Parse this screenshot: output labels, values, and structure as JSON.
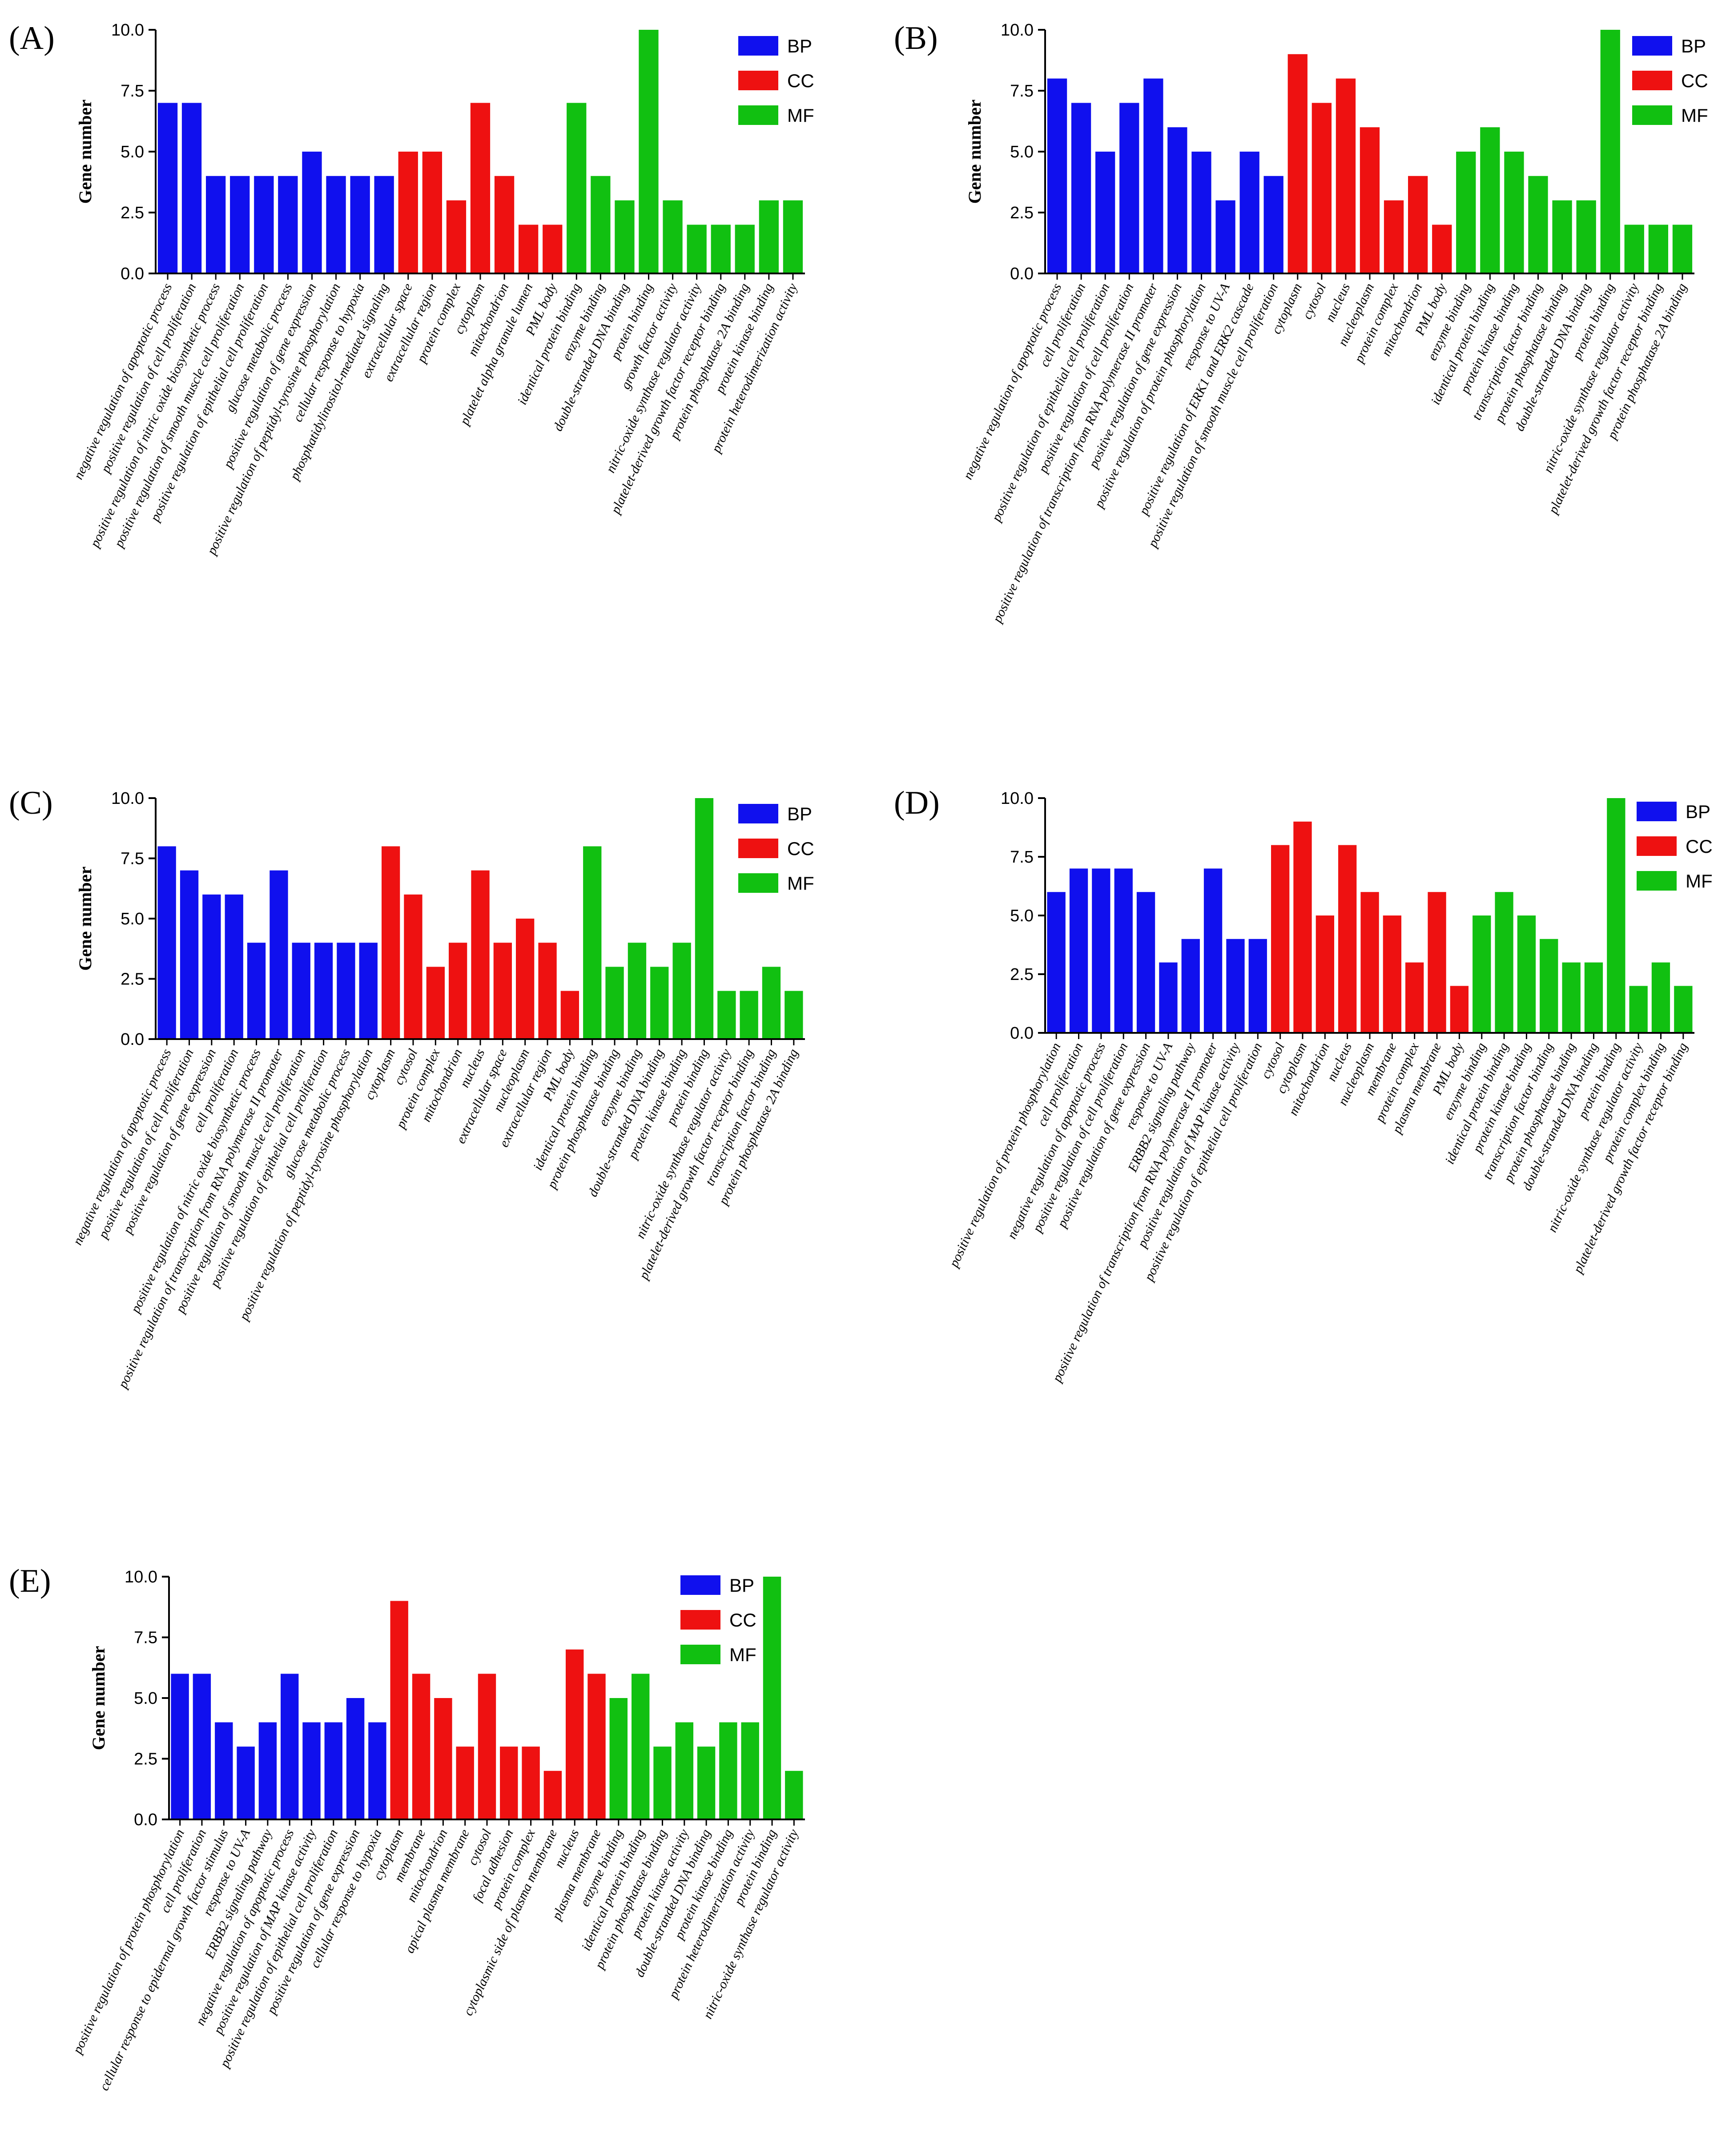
{
  "colors": {
    "BP": "#1010ee",
    "CC": "#ee1111",
    "MF": "#11c011"
  },
  "chart_data": [
    {
      "panel": "(A)",
      "type": "bar",
      "title": "",
      "xlabel": "",
      "ylabel": "Gene number",
      "ylim": [
        0,
        10
      ],
      "yticks": [
        "0.0",
        "2.5",
        "5.0",
        "7.5",
        "10.0"
      ],
      "legend": [
        "BP",
        "CC",
        "MF"
      ],
      "categories": [
        "negative regulation of apoptotic process",
        "positive regulation of cell proliferation",
        "positive regulation of nitric oxide biosynthetic process",
        "positive regulation of smooth muscle cell proliferation",
        "positive regulation of epithelial cell proliferation",
        "glucose metabolic process",
        "positive regulation of gene expression",
        "positive regulation of peptidyl-tyrosine phosphorylation",
        "cellular response to hypoxia",
        "phosphatidylinositol-mediated signaling",
        "extracellular space",
        "extracellular region",
        "protein complex",
        "cytoplasm",
        "mitochondrion",
        "platelet alpha granule lumen",
        "PML body",
        "identical protein binding",
        "enzyme binding",
        "double-stranded DNA binding",
        "protein binding",
        "growth factor activity",
        "nitric-oxide synthase regulator activity",
        "platelet-derived growth factor receptor binding",
        "protein phosphatase 2A binding",
        "protein kinase binding",
        "protein heterodimerization activity"
      ],
      "values": [
        7,
        7,
        4,
        4,
        4,
        4,
        5,
        4,
        4,
        4,
        5,
        5,
        3,
        7,
        4,
        2,
        2,
        7,
        4,
        3,
        10,
        3,
        2,
        2,
        2,
        3,
        3
      ],
      "groups": [
        "BP",
        "BP",
        "BP",
        "BP",
        "BP",
        "BP",
        "BP",
        "BP",
        "BP",
        "BP",
        "CC",
        "CC",
        "CC",
        "CC",
        "CC",
        "CC",
        "CC",
        "MF",
        "MF",
        "MF",
        "MF",
        "MF",
        "MF",
        "MF",
        "MF",
        "MF",
        "MF"
      ]
    },
    {
      "panel": "(B)",
      "type": "bar",
      "title": "",
      "xlabel": "",
      "ylabel": "Gene number",
      "ylim": [
        0,
        10
      ],
      "yticks": [
        "0.0",
        "2.5",
        "5.0",
        "7.5",
        "10.0"
      ],
      "legend": [
        "BP",
        "CC",
        "MF"
      ],
      "categories": [
        "negative regulation of apoptotic process",
        "cell proliferation",
        "positive regulation of epithelial cell proliferation",
        "positive regulation of cell proliferation",
        "positive regulation of transcription from RNA polymerase II promoter",
        "positive regulation of gene expression",
        "positive regulation of protein phosphorylation",
        "response to UV-A",
        "positive regulation of ERK1 and ERK2 cascade",
        "positive regulation of smooth muscle cell proliferation",
        "cytoplasm",
        "cytosol",
        "nucleus",
        "nucleoplasm",
        "protein complex",
        "mitochondrion",
        "PML body",
        "enzyme binding",
        "identical protein binding",
        "protein kinase binding",
        "transcription factor binding",
        "protein phosphatase binding",
        "double-stranded DNA binding",
        "protein binding",
        "nitric-oxide synthase regulator activity",
        "platelet-derived growth factor receptor binding",
        "protein phosphatase 2A binding"
      ],
      "values": [
        8,
        7,
        5,
        7,
        8,
        6,
        5,
        3,
        5,
        4,
        9,
        7,
        8,
        6,
        3,
        4,
        2,
        5,
        6,
        5,
        4,
        3,
        3,
        10,
        2,
        2,
        2
      ],
      "groups": [
        "BP",
        "BP",
        "BP",
        "BP",
        "BP",
        "BP",
        "BP",
        "BP",
        "BP",
        "BP",
        "CC",
        "CC",
        "CC",
        "CC",
        "CC",
        "CC",
        "CC",
        "MF",
        "MF",
        "MF",
        "MF",
        "MF",
        "MF",
        "MF",
        "MF",
        "MF",
        "MF"
      ]
    },
    {
      "panel": "(C)",
      "type": "bar",
      "title": "",
      "xlabel": "",
      "ylabel": "Gene number",
      "ylim": [
        0,
        10
      ],
      "yticks": [
        "0.0",
        "2.5",
        "5.0",
        "7.5",
        "10.0"
      ],
      "legend": [
        "BP",
        "CC",
        "MF"
      ],
      "categories": [
        "negative regulation of apoptotic process",
        "positive regulation of cell proliferation",
        "positive regulation of gene expression",
        "cell proliferation",
        "positive regulation of nitric oxide biosynthetic process",
        "positive regulation of transcription from RNA polymerase II promoter",
        "positive regulation of smooth muscle cell proliferation",
        "positive regulation of epithelial cell proliferation",
        "glucose metabolic process",
        "positive regulation of peptidyl-tyrosine phosphorylation",
        "cytoplasm",
        "cytosol",
        "protein complex",
        "mitochondrion",
        "nucleus",
        "extracellular space",
        "nucleoplasm",
        "extracellular region",
        "PML body",
        "identical protein binding",
        "protein phosphatase binding",
        "enzyme binding",
        "double-stranded DNA binding",
        "protein kinase binding",
        "protein binding",
        "nitric-oxide synthase regulator activity",
        "platelet-derived growth factor receptor binding",
        "transcription factor binding",
        "protein phosphatase 2A binding"
      ],
      "values": [
        8,
        7,
        6,
        6,
        4,
        7,
        4,
        4,
        4,
        4,
        8,
        6,
        3,
        4,
        7,
        4,
        5,
        4,
        2,
        8,
        3,
        4,
        3,
        4,
        10,
        2,
        2,
        3,
        2
      ],
      "groups": [
        "BP",
        "BP",
        "BP",
        "BP",
        "BP",
        "BP",
        "BP",
        "BP",
        "BP",
        "BP",
        "CC",
        "CC",
        "CC",
        "CC",
        "CC",
        "CC",
        "CC",
        "CC",
        "CC",
        "MF",
        "MF",
        "MF",
        "MF",
        "MF",
        "MF",
        "MF",
        "MF",
        "MF",
        "MF"
      ]
    },
    {
      "panel": "(D)",
      "type": "bar",
      "title": "",
      "xlabel": "",
      "ylabel": "",
      "ylim": [
        0,
        10
      ],
      "yticks": [
        "0.0",
        "2.5",
        "5.0",
        "7.5",
        "10.0"
      ],
      "legend": [
        "BP",
        "CC",
        "MF"
      ],
      "categories": [
        "positive regulation of protein phosphorylation",
        "cell proliferation",
        "negative regulation of apoptotic process",
        "positive regulation of cell proliferation",
        "positive regulation of gene expression",
        "response to UV-A",
        "ERBB2 signaling pathway",
        "positive regulation of transcription from RNA polymerase II promoter",
        "positive regulation of MAP kinase activity",
        "positive regulation of epithelial cell proliferation",
        "cytosol",
        "cytoplasm",
        "mitochondrion",
        "nucleus",
        "nucleoplasm",
        "membrane",
        "protein complex",
        "plasma membrane",
        "PML body",
        "enzyme binding",
        "identical protein binding",
        "protein kinase binding",
        "transcription factor binding",
        "protein phosphatase binding",
        "double-stranded DNA binding",
        "protein binding",
        "nitric-oxide synthase regulator activity",
        "protein complex binding",
        "platelet-derived growth factor receptor binding"
      ],
      "values": [
        6,
        7,
        7,
        7,
        6,
        3,
        4,
        7,
        4,
        4,
        8,
        9,
        5,
        8,
        6,
        5,
        3,
        6,
        2,
        5,
        6,
        5,
        4,
        3,
        3,
        10,
        2,
        3,
        2
      ],
      "groups": [
        "BP",
        "BP",
        "BP",
        "BP",
        "BP",
        "BP",
        "BP",
        "BP",
        "BP",
        "BP",
        "CC",
        "CC",
        "CC",
        "CC",
        "CC",
        "CC",
        "CC",
        "CC",
        "CC",
        "MF",
        "MF",
        "MF",
        "MF",
        "MF",
        "MF",
        "MF",
        "MF",
        "MF",
        "MF"
      ]
    },
    {
      "panel": "(E)",
      "type": "bar",
      "title": "",
      "xlabel": "",
      "ylabel": "Gene number",
      "ylim": [
        0,
        10
      ],
      "yticks": [
        "0.0",
        "2.5",
        "5.0",
        "7.5",
        "10.0"
      ],
      "legend": [
        "BP",
        "CC",
        "MF"
      ],
      "categories": [
        "positive regulation of protein phosphorylation",
        "cell proliferation",
        "cellular response to epidermal growth factor stimulus",
        "response to UV-A",
        "ERBB2 signaling pathway",
        "negative regulation of apoptotic process",
        "positive regulation of MAP kinase activity",
        "positive regulation of epithelial cell proliferation",
        "positive regulation of gene expression",
        "cellular response to hypoxia",
        "cytoplasm",
        "membrane",
        "mitochondrion",
        "apical plasma membrane",
        "cytosol",
        "focal adhesion",
        "protein complex",
        "cytoplasmic side of plasma membrane",
        "nucleus",
        "plasma membrane",
        "enzyme binding",
        "identical protein binding",
        "protein phosphatase binding",
        "protein kinase activity",
        "double-stranded DNA binding",
        "protein kinase binding",
        "protein heterodimerization activity",
        "protein binding",
        "nitric-oxide synthase regulator activity"
      ],
      "values": [
        6,
        6,
        4,
        3,
        4,
        6,
        4,
        4,
        5,
        4,
        9,
        6,
        5,
        3,
        6,
        3,
        3,
        2,
        7,
        6,
        5,
        6,
        3,
        4,
        3,
        4,
        4,
        10,
        2
      ],
      "groups": [
        "BP",
        "BP",
        "BP",
        "BP",
        "BP",
        "BP",
        "BP",
        "BP",
        "BP",
        "BP",
        "CC",
        "CC",
        "CC",
        "CC",
        "CC",
        "CC",
        "CC",
        "CC",
        "CC",
        "CC",
        "MF",
        "MF",
        "MF",
        "MF",
        "MF",
        "MF",
        "MF",
        "MF",
        "MF"
      ]
    }
  ]
}
